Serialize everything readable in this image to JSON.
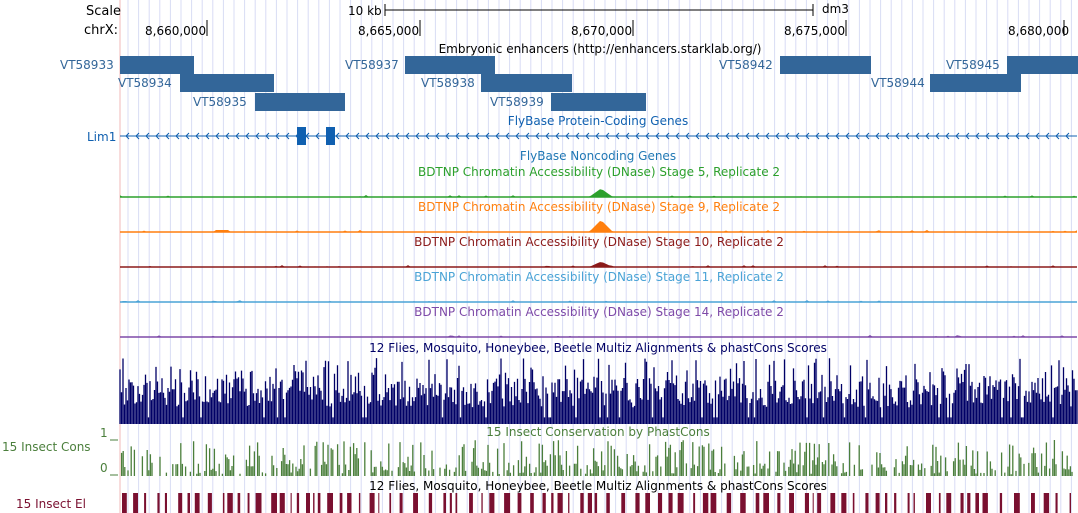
{
  "scale": {
    "label": "Scale",
    "chrom_label": "chrX:",
    "bar_label": "10 kb",
    "assembly": "dm3",
    "ticks": [
      "8,660,000",
      "8,665,000",
      "8,670,000",
      "8,675,000",
      "8,680,000"
    ]
  },
  "tracks": {
    "enhancers": {
      "title": "Embryonic enhancers (http://enhancers.starklab.org/)",
      "color": "#336699",
      "items": [
        "VT58933",
        "VT58934",
        "VT58935",
        "VT58937",
        "VT58938",
        "VT58939",
        "VT58942",
        "VT58944",
        "VT58945"
      ]
    },
    "coding_genes": {
      "title": "FlyBase Protein-Coding Genes",
      "gene": "Lim1",
      "color": "#1060b0"
    },
    "noncoding_genes": {
      "title": "FlyBase Noncoding Genes",
      "color": "#1f77b4"
    },
    "dnase": [
      {
        "title": "BDTNP Chromatin Accessibility (DNase) Stage 5, Replicate 2",
        "color": "#2ca02c"
      },
      {
        "title": "BDTNP Chromatin Accessibility (DNase) Stage 9, Replicate 2",
        "color": "#ff7f0e"
      },
      {
        "title": "BDTNP Chromatin Accessibility (DNase) Stage 10, Replicate 2",
        "color": "#8b1a1a"
      },
      {
        "title": "BDTNP Chromatin Accessibility (DNase) Stage 11, Replicate 2",
        "color": "#4aa3d6"
      },
      {
        "title": "BDTNP Chromatin Accessibility (DNase) Stage 14, Replicate 2",
        "color": "#7e4aa8"
      }
    ],
    "multiz": {
      "title": "12 Flies, Mosquito, Honeybee, Beetle Multiz Alignments & phastCons Scores",
      "color": "#000066"
    },
    "insect_cons": {
      "title": "15 Insect Conservation by PhastCons",
      "left_label": "15 Insect Cons",
      "axis_max": "1",
      "axis_min": "0",
      "color": "#4b7f3c"
    },
    "insect_el": {
      "title": "12 Flies, Mosquito, Honeybee, Beetle Multiz Alignments & phastCons Scores",
      "left_label": "15 Insect El",
      "color": "#7a1030"
    }
  }
}
